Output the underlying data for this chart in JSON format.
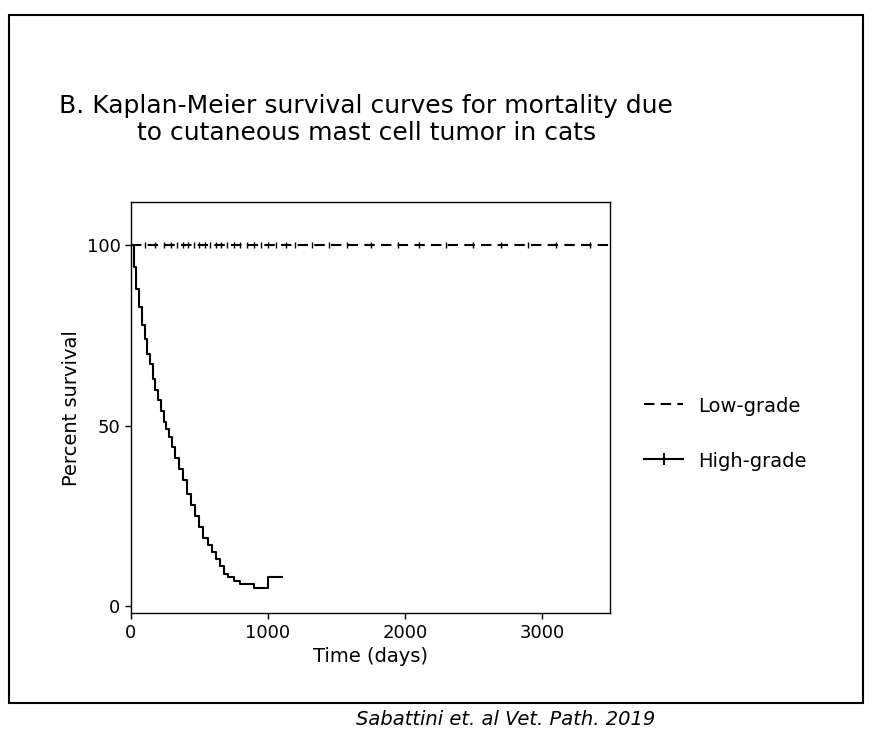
{
  "title_line1": "B. Kaplan-Meier survival curves for mortality due",
  "title_line2": "to cutaneous mast cell tumor in cats",
  "xlabel": "Time (days)",
  "ylabel": "Percent survival",
  "citation": "Sabattini et. al Vet. Path. 2019",
  "xlim": [
    0,
    3500
  ],
  "ylim": [
    -2,
    112
  ],
  "yticks": [
    0,
    50,
    100
  ],
  "xticks": [
    0,
    1000,
    2000,
    3000
  ],
  "background_color": "#ffffff",
  "high_grade_times": [
    0,
    20,
    40,
    60,
    80,
    100,
    120,
    140,
    160,
    180,
    200,
    220,
    240,
    260,
    280,
    300,
    320,
    350,
    380,
    410,
    440,
    470,
    500,
    530,
    560,
    590,
    620,
    650,
    680,
    710,
    750,
    800,
    850,
    900,
    950,
    1000,
    1050,
    1100
  ],
  "high_grade_surv": [
    100,
    94,
    88,
    83,
    78,
    74,
    70,
    67,
    63,
    60,
    57,
    54,
    51,
    49,
    47,
    44,
    41,
    38,
    35,
    31,
    28,
    25,
    22,
    19,
    17,
    15,
    13,
    11,
    9,
    8,
    7,
    6,
    6,
    5,
    5,
    8,
    8,
    8
  ],
  "low_grade_times": [
    0,
    3500
  ],
  "low_grade_surv": [
    100,
    100
  ],
  "low_grade_censors": [
    100,
    180,
    240,
    290,
    340,
    380,
    420,
    460,
    500,
    540,
    580,
    620,
    660,
    700,
    750,
    800,
    850,
    900,
    950,
    1000,
    1060,
    1130,
    1200,
    1320,
    1450,
    1580,
    1750,
    1950,
    2100,
    2300,
    2500,
    2700,
    2900,
    3100,
    3350
  ],
  "title_fontsize": 18,
  "axis_label_fontsize": 14,
  "tick_fontsize": 13,
  "legend_fontsize": 14,
  "citation_fontsize": 14
}
